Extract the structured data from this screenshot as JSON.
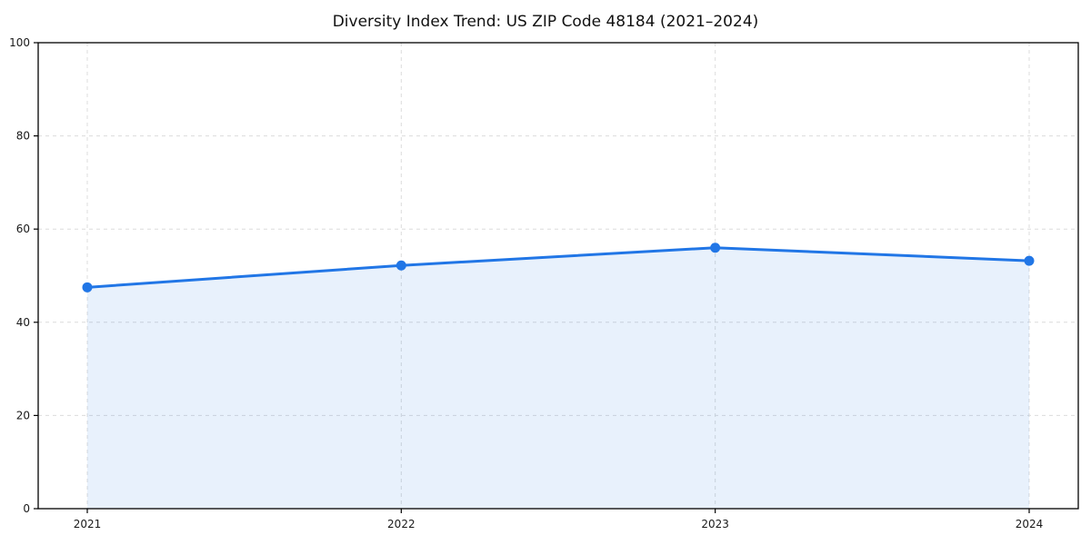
{
  "chart": {
    "title": "Diversity Index Trend: US ZIP Code 48184 (2021–2024)"
  },
  "chart_data": {
    "type": "area",
    "title": "Diversity Index Trend: US ZIP Code 48184 (2021–2024)",
    "categories": [
      "2021",
      "2022",
      "2023",
      "2024"
    ],
    "values": [
      47.5,
      52.2,
      56.0,
      53.2
    ],
    "xlabel": "",
    "ylabel": "",
    "ylim": [
      0,
      100
    ],
    "yticks": [
      0,
      20,
      40,
      60,
      80,
      100
    ],
    "grid": true,
    "grid_style": "dashed",
    "legend": "none",
    "colors": {
      "line": "#2176e6",
      "marker": "#2176e6",
      "fill": "rgba(33, 118, 230, 0.10)",
      "gridline": "#dcdcdc",
      "axis": "#000000",
      "tick_label": "#1a1a1a",
      "background": "#ffffff"
    }
  }
}
